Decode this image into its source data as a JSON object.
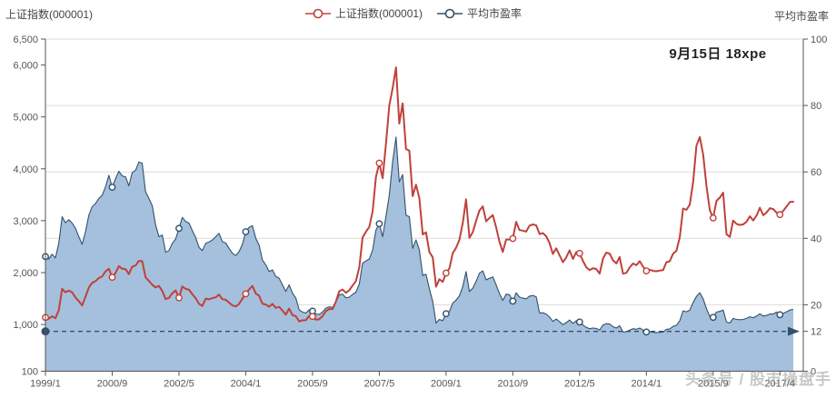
{
  "header": {
    "left_axis_title": "上证指数(000001)",
    "right_axis_title": "平均市盈率",
    "legend": [
      {
        "label": "上证指数(000001)",
        "color": "#c0413a"
      },
      {
        "label": "平均市盈率",
        "color": "#33506b"
      }
    ]
  },
  "annotation": {
    "text": "9月15日 18xpe"
  },
  "watermark": {
    "text": "头条号 / 股市操盘手"
  },
  "chart_data": {
    "type": "line",
    "title": "",
    "x_tick_labels": [
      "1999/1",
      "2000/9",
      "2002/5",
      "2004/1",
      "2005/9",
      "2007/5",
      "2009/1",
      "2010/9",
      "2012/5",
      "2014/1",
      "2015/9",
      "2017/4"
    ],
    "x_tick_interval_months": 20,
    "marker_every_n_points": 20,
    "left_axis": {
      "title": "上证指数(000001)",
      "min": 100,
      "max": 6500,
      "tick_values": [
        100,
        1000,
        2000,
        3000,
        4000,
        5000,
        6000,
        6500
      ],
      "tick_labels": [
        "100",
        "1,000",
        "2,000",
        "3,000",
        "4,000",
        "5,000",
        "6,000",
        "6,500"
      ]
    },
    "right_axis": {
      "title": "平均市盈率",
      "min": 0,
      "max": 100,
      "tick_values": [
        0,
        12,
        20,
        40,
        60,
        80,
        100
      ],
      "tick_labels": [
        "0",
        "12",
        "20",
        "40",
        "60",
        "80",
        "100"
      ],
      "grid_tick_values": [
        20,
        40,
        60,
        80,
        100
      ]
    },
    "reference_line": {
      "axis": "right",
      "value": 12,
      "style": "dashed",
      "color": "#33506b",
      "arrow": "right",
      "start_dot": true
    },
    "series": [
      {
        "name": "上证指数(000001)",
        "axis": "left",
        "kind": "line",
        "color": "#c0413a",
        "values": [
          1135,
          1110,
          1158,
          1120,
          1279,
          1689,
          1620,
          1655,
          1618,
          1520,
          1450,
          1366,
          1535,
          1715,
          1800,
          1836,
          1894,
          1928,
          2023,
          2074,
          1910,
          1995,
          2125,
          2073,
          2066,
          1970,
          2113,
          2136,
          2225,
          2218,
          1909,
          1839,
          1765,
          1716,
          1742,
          1646,
          1491,
          1511,
          1603,
          1657,
          1515,
          1732,
          1686,
          1669,
          1582,
          1508,
          1397,
          1358,
          1499,
          1485,
          1510,
          1522,
          1577,
          1486,
          1476,
          1422,
          1367,
          1348,
          1397,
          1497,
          1590,
          1675,
          1742,
          1595,
          1555,
          1399,
          1386,
          1342,
          1397,
          1320,
          1340,
          1266,
          1191,
          1306,
          1181,
          1159,
          1060,
          1080,
          1083,
          1163,
          1155,
          1092,
          1099,
          1161,
          1258,
          1299,
          1298,
          1440,
          1641,
          1672,
          1612,
          1658,
          1752,
          1837,
          2099,
          2675,
          2786,
          2881,
          3183,
          3841,
          4109,
          3820,
          4471,
          5218,
          5552,
          5955,
          4872,
          5262,
          4383,
          4348,
          3473,
          3693,
          3433,
          2736,
          2776,
          2397,
          2294,
          1729,
          1872,
          1821,
          1991,
          2083,
          2373,
          2478,
          2633,
          2959,
          3412,
          2668,
          2779,
          2995,
          3195,
          3277,
          2989,
          3052,
          3109,
          2871,
          2592,
          2398,
          2638,
          2639,
          2656,
          2979,
          2820,
          2808,
          2790,
          2905,
          2928,
          2911,
          2743,
          2762,
          2701,
          2567,
          2359,
          2468,
          2333,
          2199,
          2293,
          2428,
          2263,
          2396,
          2372,
          2225,
          2104,
          2048,
          2086,
          2068,
          1980,
          2269,
          2385,
          2366,
          2237,
          2177,
          2301,
          1979,
          1994,
          2098,
          2175,
          2141,
          2220,
          2116,
          2033,
          2056,
          2033,
          2026,
          2039,
          2048,
          2201,
          2217,
          2364,
          2420,
          2683,
          3235,
          3210,
          3310,
          3748,
          4442,
          4612,
          4277,
          3664,
          3206,
          3053,
          3383,
          3445,
          3539,
          2738,
          2688,
          3004,
          2938,
          2917,
          2930,
          2979,
          3085,
          3005,
          3100,
          3250,
          3104,
          3159,
          3242,
          3223,
          3155,
          3117,
          3192,
          3273,
          3361,
          3365
        ]
      },
      {
        "name": "平均市盈率",
        "axis": "right",
        "kind": "area",
        "color": "#33506b",
        "fill": "#a4c0dc",
        "values": [
          34.5,
          33.8,
          35.2,
          34.1,
          38.5,
          46.5,
          44.7,
          45.6,
          44.6,
          43.0,
          40.5,
          38.2,
          42.0,
          47.0,
          49.5,
          50.5,
          52.0,
          53.0,
          55.5,
          59.0,
          55.4,
          58.0,
          60.2,
          58.8,
          58.5,
          55.8,
          59.8,
          60.5,
          63.0,
          62.6,
          54.0,
          52.0,
          49.8,
          44.1,
          40.5,
          41.0,
          35.8,
          36.3,
          38.5,
          39.8,
          43.0,
          46.3,
          45.1,
          44.6,
          42.3,
          40.3,
          37.3,
          36.3,
          38.5,
          38.9,
          39.5,
          40.5,
          41.5,
          39.0,
          38.6,
          37.0,
          35.5,
          34.8,
          36.0,
          38.2,
          42.0,
          43.3,
          43.8,
          40.0,
          38.0,
          33.5,
          32.0,
          30.0,
          30.5,
          28.5,
          28.0,
          26.0,
          24.0,
          26.0,
          23.5,
          22.0,
          18.5,
          17.8,
          17.5,
          18.5,
          18.1,
          17.2,
          17.1,
          17.8,
          19.0,
          19.4,
          19.2,
          20.8,
          23.0,
          23.2,
          22.1,
          22.3,
          23.1,
          23.8,
          26.3,
          32.5,
          33.2,
          33.8,
          36.5,
          42.5,
          44.4,
          40.5,
          46.5,
          53.0,
          63.0,
          70.5,
          57.0,
          59.2,
          47.0,
          46.5,
          37.0,
          39.5,
          36.5,
          28.8,
          29.2,
          24.8,
          21.0,
          14.5,
          15.6,
          15.2,
          17.3,
          18.0,
          20.5,
          21.4,
          22.7,
          25.5,
          30.0,
          24.0,
          25.0,
          27.0,
          29.5,
          30.2,
          27.5,
          28.0,
          28.4,
          26.0,
          23.3,
          21.3,
          23.2,
          23.0,
          21.1,
          23.6,
          22.3,
          22.0,
          21.8,
          22.6,
          22.8,
          22.4,
          17.5,
          17.6,
          17.2,
          16.3,
          15.0,
          15.7,
          14.9,
          14.0,
          14.6,
          15.4,
          14.4,
          15.2,
          14.8,
          13.9,
          13.2,
          12.8,
          13.0,
          12.9,
          12.4,
          13.9,
          14.3,
          14.2,
          13.4,
          13.0,
          13.7,
          11.8,
          11.9,
          12.4,
          12.8,
          12.6,
          13.0,
          12.4,
          11.8,
          11.9,
          11.7,
          11.6,
          11.7,
          11.8,
          12.6,
          12.7,
          13.5,
          13.8,
          15.2,
          18.2,
          17.9,
          18.4,
          20.7,
          22.5,
          23.6,
          21.8,
          18.8,
          16.5,
          16.2,
          17.8,
          18.0,
          18.4,
          14.8,
          14.5,
          15.9,
          15.6,
          15.5,
          15.6,
          15.9,
          16.4,
          16.1,
          16.6,
          17.3,
          16.6,
          16.8,
          17.2,
          17.2,
          17.8,
          17.0,
          17.4,
          17.9,
          18.4,
          18.6
        ]
      }
    ]
  }
}
